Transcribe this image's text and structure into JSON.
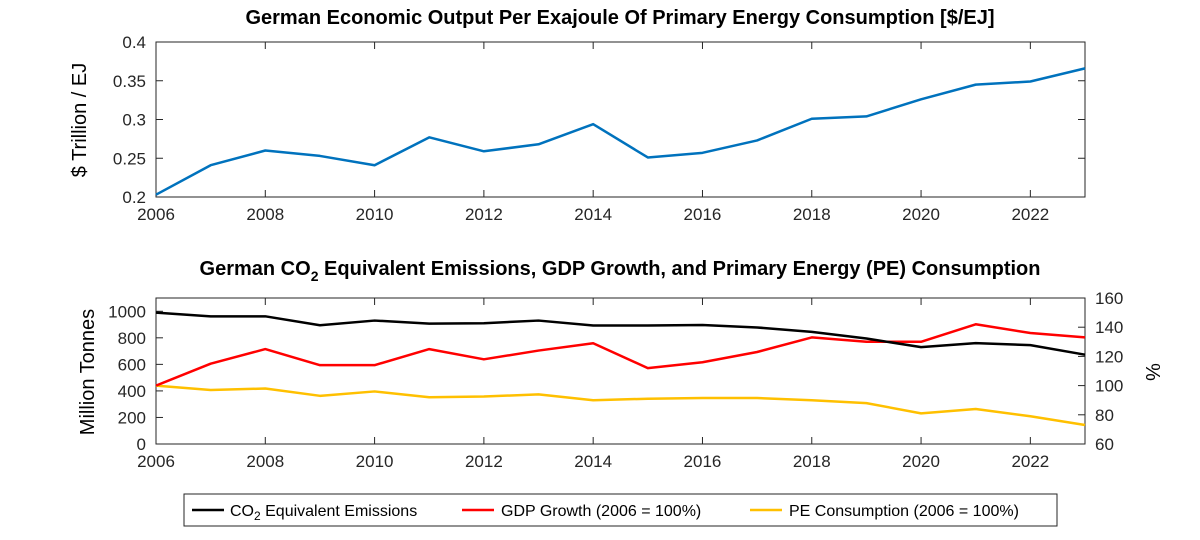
{
  "chart_data": [
    {
      "type": "line",
      "title": "German Economic Output Per Exajoule Of Primary Energy Consumption [$/EJ]",
      "xlabel": "",
      "ylabel": "$ Trillion / EJ",
      "x": [
        2006,
        2007,
        2008,
        2009,
        2010,
        2011,
        2012,
        2013,
        2014,
        2015,
        2016,
        2017,
        2018,
        2019,
        2020,
        2021,
        2022,
        2023
      ],
      "xlim": [
        2006,
        2023
      ],
      "xticks": [
        2006,
        2008,
        2010,
        2012,
        2014,
        2016,
        2018,
        2020,
        2022
      ],
      "ylim": [
        0.2,
        0.4
      ],
      "yticks": [
        0.2,
        0.25,
        0.3,
        0.35,
        0.4
      ],
      "ytick_labels": [
        "0.2",
        "0.25",
        "0.3",
        "0.35",
        "0.4"
      ],
      "grid": false,
      "series": [
        {
          "name": "",
          "color": "#0072BD",
          "values": [
            0.203,
            0.241,
            0.26,
            0.253,
            0.241,
            0.277,
            0.259,
            0.268,
            0.294,
            0.251,
            0.257,
            0.273,
            0.301,
            0.304,
            0.326,
            0.345,
            0.349,
            0.366
          ]
        }
      ]
    },
    {
      "type": "line",
      "title_main": "German CO",
      "title_sub": "2",
      "title_rest": " Equivalent Emissions, GDP Growth, and Primary Energy (PE) Consumption",
      "xlabel": "",
      "ylabel_left": "Million Tonnes",
      "ylabel_right": "%",
      "x": [
        2006,
        2007,
        2008,
        2009,
        2010,
        2011,
        2012,
        2013,
        2014,
        2015,
        2016,
        2017,
        2018,
        2019,
        2020,
        2021,
        2022,
        2023
      ],
      "xlim": [
        2006,
        2023
      ],
      "xticks": [
        2006,
        2008,
        2010,
        2012,
        2014,
        2016,
        2018,
        2020,
        2022
      ],
      "ylim_left": [
        0,
        1100
      ],
      "yticks_left": [
        0,
        200,
        400,
        600,
        800,
        1000
      ],
      "ylim_right": [
        60,
        160
      ],
      "yticks_right": [
        60,
        80,
        100,
        120,
        140,
        160
      ],
      "grid": false,
      "legend_position": "bottom-center",
      "series": [
        {
          "name": "CO2 Equivalent Emissions",
          "legend_main": "CO",
          "legend_sub": "2",
          "legend_rest": " Equivalent Emissions",
          "axis": "left",
          "color": "#000000",
          "values": [
            990,
            962,
            962,
            895,
            930,
            907,
            910,
            930,
            893,
            893,
            897,
            878,
            845,
            795,
            730,
            760,
            745,
            673
          ]
        },
        {
          "name": "GDP Growth (2006 = 100%)",
          "legend_main": "GDP Growth (2006 = 100%)",
          "legend_sub": "",
          "legend_rest": "",
          "axis": "right",
          "color": "#FF0000",
          "values": [
            100,
            115,
            125,
            114,
            114,
            125,
            118,
            124,
            129,
            112,
            116,
            123,
            133,
            130,
            130,
            142,
            136,
            133
          ]
        },
        {
          "name": "PE Consumption (2006 = 100%)",
          "legend_main": "PE Consumption (2006 = 100%)",
          "legend_sub": "",
          "legend_rest": "",
          "axis": "right",
          "color": "#FFC000",
          "values": [
            100,
            97,
            98,
            93,
            96,
            92,
            92.5,
            94,
            90,
            91,
            91.5,
            91.5,
            90,
            88,
            81,
            84,
            79,
            73
          ]
        }
      ]
    }
  ]
}
